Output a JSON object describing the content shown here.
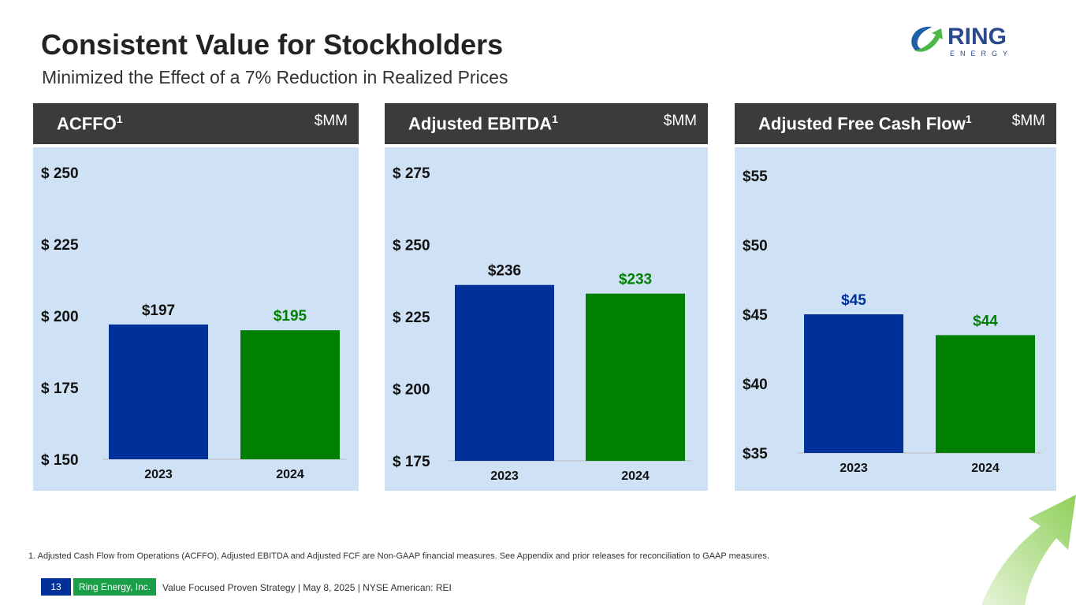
{
  "title": "Consistent Value for Stockholders",
  "subtitle": "Minimized the Effect of a 7% Reduction in Realized Prices",
  "logo": {
    "text": "RING",
    "subtext": "E N E R G Y"
  },
  "colors": {
    "bar2023": "#00309a",
    "bar2024": "#008000",
    "panel_bg": "#cfe2f5",
    "header": "#3b3b3b"
  },
  "chart_data": [
    {
      "type": "bar",
      "title": "ACFFO",
      "title_sup": "1",
      "unit": "$MM",
      "categories": [
        "2023",
        "2024"
      ],
      "values": [
        197,
        195
      ],
      "value_labels": [
        "$197",
        "$195"
      ],
      "ylim": [
        150,
        250
      ],
      "yticks": [
        150,
        175,
        200,
        225,
        250
      ],
      "ytick_labels": [
        "$ 150",
        "$ 175",
        "$ 200",
        "$ 225",
        "$ 250"
      ],
      "label_colors": [
        "#111111",
        "#008000"
      ]
    },
    {
      "type": "bar",
      "title": "Adjusted EBITDA",
      "title_sup": "1",
      "unit": "$MM",
      "categories": [
        "2023",
        "2024"
      ],
      "values": [
        236,
        233
      ],
      "value_labels": [
        "$236",
        "$233"
      ],
      "ylim": [
        175,
        275
      ],
      "yticks": [
        175,
        200,
        225,
        250,
        275
      ],
      "ytick_labels": [
        "$ 175",
        "$ 200",
        "$ 225",
        "$ 250",
        "$ 275"
      ],
      "label_colors": [
        "#111111",
        "#008000"
      ]
    },
    {
      "type": "bar",
      "title": "Adjusted Free Cash Flow",
      "title_sup": "1",
      "unit": "$MM",
      "categories": [
        "2023",
        "2024"
      ],
      "values": [
        45,
        43.5
      ],
      "value_labels": [
        "$45",
        "$44"
      ],
      "ylim": [
        35,
        55
      ],
      "yticks": [
        35,
        40,
        45,
        50,
        55
      ],
      "ytick_labels": [
        "$35",
        "$40",
        "$45",
        "$50",
        "$55"
      ],
      "label_colors": [
        "#00309a",
        "#008000"
      ]
    }
  ],
  "footnote": "1.   Adjusted Cash Flow from Operations (ACFFO), Adjusted EBITDA and Adjusted FCF are Non-GAAP financial measures. See Appendix and prior releases for reconciliation to GAAP measures.",
  "footer": {
    "page": "13",
    "company": "Ring Energy, Inc.",
    "strategy": "Value Focused Proven Strategy  | May 8, 2025 |  NYSE American: REI"
  }
}
